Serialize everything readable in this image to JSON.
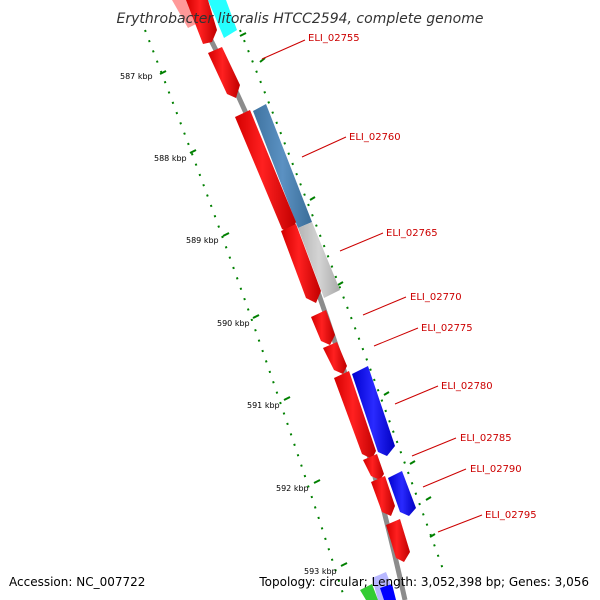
{
  "title": "Erythrobacter litoralis HTCC2594, complete genome",
  "footer": {
    "accession": "Accession: NC_007722",
    "summary": "Topology: circular; Length: 3,052,398 bp; Genes: 3,056"
  },
  "tick_labels": [
    "587 kbp",
    "588 kbp",
    "589 kbp",
    "590 kbp",
    "591 kbp",
    "592 kbp",
    "593 kbp"
  ],
  "gene_labels": [
    "ELI_02755",
    "ELI_02760",
    "ELI_02765",
    "ELI_02770",
    "ELI_02775",
    "ELI_02780",
    "ELI_02785",
    "ELI_02790",
    "ELI_02795"
  ],
  "colors": {
    "backbone": "#8c8c8c",
    "forward_gene": "#ff0000",
    "reverse_gene_blue": "#0000ff",
    "reverse_gene_steel": "#4682b4",
    "reverse_gene_gray": "#c0c0c0",
    "reverse_gene_cyan": "#00ffff",
    "tick_marks": "#008000",
    "label_color": "#cc0000"
  }
}
